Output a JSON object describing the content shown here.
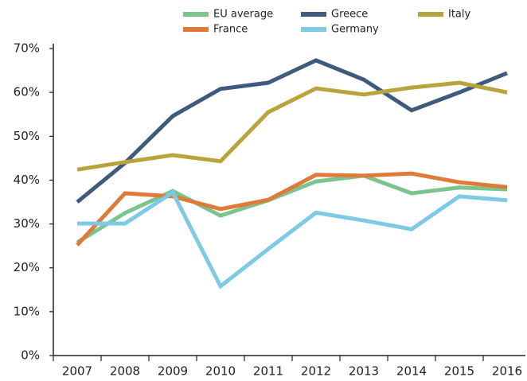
{
  "chart_data": {
    "type": "line",
    "categories": [
      "2007",
      "2008",
      "2009",
      "2010",
      "2011",
      "2012",
      "2013",
      "2014",
      "2015",
      "2016"
    ],
    "series": [
      {
        "name": "EU average",
        "color": "#7cc48e",
        "values": [
          25.8,
          32.5,
          37.5,
          31.9,
          35.4,
          39.7,
          41.0,
          37.0,
          38.3,
          37.9
        ]
      },
      {
        "name": "Greece",
        "color": "#405a7d",
        "values": [
          35.0,
          43.9,
          54.6,
          60.8,
          62.2,
          67.3,
          62.9,
          55.9,
          60.0,
          64.4
        ]
      },
      {
        "name": "Italy",
        "color": "#b9a33c",
        "values": [
          42.4,
          44.1,
          45.7,
          44.3,
          55.5,
          60.9,
          59.5,
          61.1,
          62.2,
          60.0
        ]
      },
      {
        "name": "France",
        "color": "#e07a38",
        "values": [
          25.2,
          37.0,
          36.3,
          33.4,
          35.5,
          41.2,
          41.0,
          41.5,
          39.5,
          38.4
        ]
      },
      {
        "name": "Germany",
        "color": "#7ec9e4",
        "values": [
          30.1,
          30.1,
          37.2,
          15.8,
          24.3,
          32.6,
          30.8,
          28.8,
          36.3,
          35.4
        ]
      }
    ],
    "ylim": [
      0,
      70
    ],
    "yticks": [
      {
        "value": 0,
        "label": "0%"
      },
      {
        "value": 10,
        "label": "10%"
      },
      {
        "value": 20,
        "label": "20%"
      },
      {
        "value": 30,
        "label": "30%"
      },
      {
        "value": 40,
        "label": "40%"
      },
      {
        "value": 50,
        "label": "50%"
      },
      {
        "value": 60,
        "label": "60%"
      },
      {
        "value": 70,
        "label": "70%"
      }
    ],
    "legend": "top"
  }
}
